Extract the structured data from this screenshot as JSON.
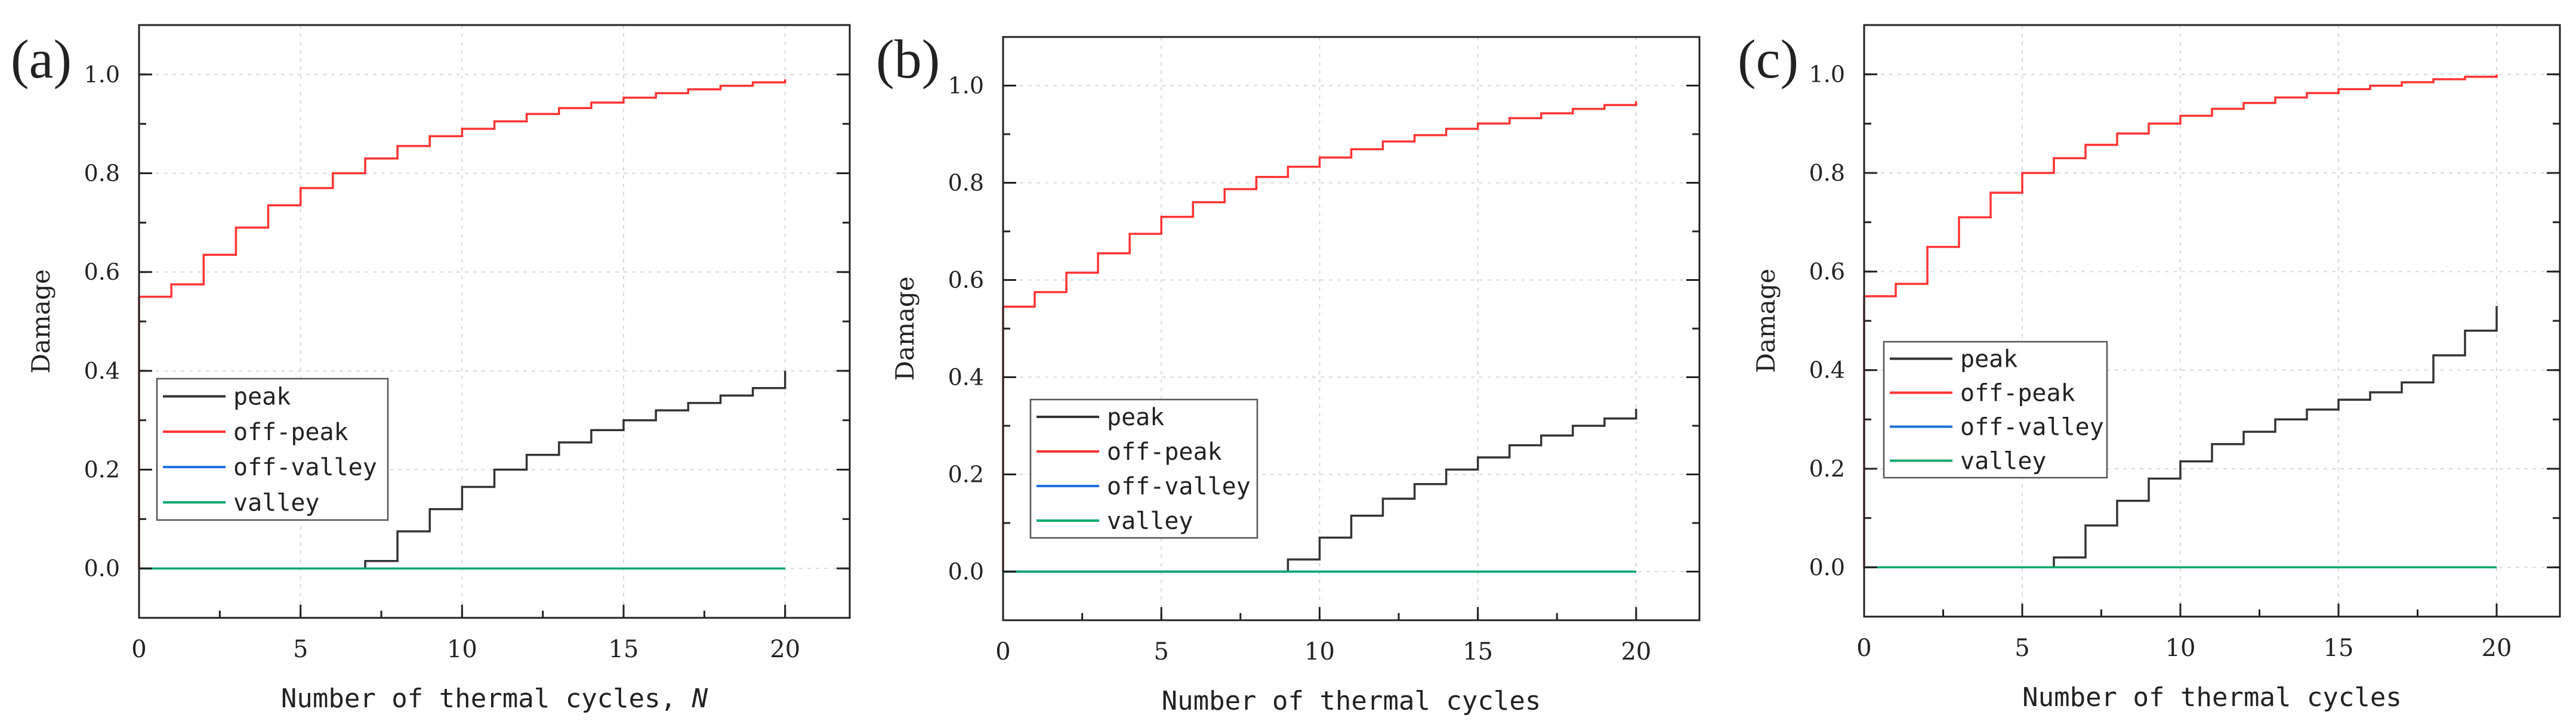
{
  "colors": {
    "peak": "#333333",
    "off-peak": "#ff3333",
    "off-valley": "#1f6fe0",
    "valley": "#00a86b",
    "grid": "#d9d9d9",
    "axis": "#222222"
  },
  "chart_data": [
    {
      "panel_label": "(a)",
      "type": "line",
      "step": true,
      "xlabel": "Number of thermal cycles, ",
      "xlabel_italic": "N",
      "ylabel": "Damage",
      "xlim": [
        0,
        22
      ],
      "ylim": [
        -0.1,
        1.1
      ],
      "xticks": [
        "0",
        "5",
        "10",
        "15",
        "20"
      ],
      "yticks": [
        "0.0",
        "0.2",
        "0.4",
        "0.6",
        "0.8",
        "1.0"
      ],
      "grid": true,
      "legend_position": "lower-left",
      "series": [
        {
          "name": "peak",
          "color_key": "peak",
          "x": [
            0,
            1,
            2,
            3,
            4,
            5,
            6,
            7,
            8,
            9,
            10,
            11,
            12,
            13,
            14,
            15,
            16,
            17,
            18,
            19,
            20
          ],
          "values": [
            0,
            0,
            0,
            0,
            0,
            0,
            0,
            0.015,
            0.075,
            0.12,
            0.165,
            0.2,
            0.23,
            0.255,
            0.28,
            0.3,
            0.32,
            0.335,
            0.35,
            0.365,
            0.4
          ]
        },
        {
          "name": "off-peak",
          "color_key": "off-peak",
          "x": [
            0,
            1,
            2,
            3,
            4,
            5,
            6,
            7,
            8,
            9,
            10,
            11,
            12,
            13,
            14,
            15,
            16,
            17,
            18,
            19,
            20
          ],
          "values": [
            0.55,
            0.575,
            0.635,
            0.69,
            0.735,
            0.77,
            0.8,
            0.83,
            0.855,
            0.875,
            0.89,
            0.905,
            0.92,
            0.932,
            0.943,
            0.953,
            0.962,
            0.97,
            0.977,
            0.984,
            0.99
          ]
        },
        {
          "name": "off-valley",
          "color_key": "off-valley",
          "x": [
            0,
            20
          ],
          "values": [
            0,
            0
          ]
        },
        {
          "name": "valley",
          "color_key": "valley",
          "x": [
            0,
            20
          ],
          "values": [
            0,
            0
          ]
        }
      ]
    },
    {
      "panel_label": "(b)",
      "type": "line",
      "step": true,
      "xlabel": "Number of thermal cycles",
      "xlabel_italic": "",
      "ylabel": "Damage",
      "xlim": [
        0,
        22
      ],
      "ylim": [
        -0.1,
        1.1
      ],
      "xticks": [
        "0",
        "5",
        "10",
        "15",
        "20"
      ],
      "yticks": [
        "0.0",
        "0.2",
        "0.4",
        "0.6",
        "0.8",
        "1.0"
      ],
      "grid": true,
      "legend_position": "lower-left",
      "series": [
        {
          "name": "peak",
          "color_key": "peak",
          "x": [
            0,
            1,
            2,
            3,
            4,
            5,
            6,
            7,
            8,
            9,
            10,
            11,
            12,
            13,
            14,
            15,
            16,
            17,
            18,
            19,
            20
          ],
          "values": [
            0,
            0,
            0,
            0,
            0,
            0,
            0,
            0,
            0,
            0.025,
            0.07,
            0.115,
            0.15,
            0.18,
            0.21,
            0.235,
            0.26,
            0.28,
            0.3,
            0.315,
            0.335
          ]
        },
        {
          "name": "off-peak",
          "color_key": "off-peak",
          "x": [
            0,
            1,
            2,
            3,
            4,
            5,
            6,
            7,
            8,
            9,
            10,
            11,
            12,
            13,
            14,
            15,
            16,
            17,
            18,
            19,
            20
          ],
          "values": [
            0.545,
            0.575,
            0.615,
            0.655,
            0.695,
            0.73,
            0.76,
            0.787,
            0.812,
            0.833,
            0.852,
            0.869,
            0.885,
            0.898,
            0.911,
            0.922,
            0.933,
            0.943,
            0.952,
            0.96,
            0.968
          ]
        },
        {
          "name": "off-valley",
          "color_key": "off-valley",
          "x": [
            0,
            20
          ],
          "values": [
            0,
            0
          ]
        },
        {
          "name": "valley",
          "color_key": "valley",
          "x": [
            0,
            20
          ],
          "values": [
            0,
            0
          ]
        }
      ]
    },
    {
      "panel_label": "(c)",
      "type": "line",
      "step": true,
      "xlabel": "Number of thermal cycles",
      "xlabel_italic": "",
      "ylabel": "Damage",
      "xlim": [
        0,
        22
      ],
      "ylim": [
        -0.1,
        1.1
      ],
      "xticks": [
        "0",
        "5",
        "10",
        "15",
        "20"
      ],
      "yticks": [
        "0.0",
        "0.2",
        "0.4",
        "0.6",
        "0.8",
        "1.0"
      ],
      "grid": true,
      "legend_position": "middle-left",
      "series": [
        {
          "name": "peak",
          "color_key": "peak",
          "x": [
            0,
            1,
            2,
            3,
            4,
            5,
            6,
            7,
            8,
            9,
            10,
            11,
            12,
            13,
            14,
            15,
            16,
            17,
            18,
            19,
            20
          ],
          "values": [
            0,
            0,
            0,
            0,
            0,
            0,
            0.02,
            0.085,
            0.135,
            0.18,
            0.215,
            0.25,
            0.275,
            0.3,
            0.32,
            0.34,
            0.355,
            0.375,
            0.43,
            0.48,
            0.53
          ]
        },
        {
          "name": "off-peak",
          "color_key": "off-peak",
          "x": [
            0,
            1,
            2,
            3,
            4,
            5,
            6,
            7,
            8,
            9,
            10,
            11,
            12,
            13,
            14,
            15,
            16,
            17,
            18,
            19,
            20
          ],
          "values": [
            0.55,
            0.575,
            0.65,
            0.71,
            0.76,
            0.8,
            0.83,
            0.857,
            0.88,
            0.9,
            0.916,
            0.93,
            0.942,
            0.953,
            0.962,
            0.97,
            0.977,
            0.984,
            0.99,
            0.995,
            1.0
          ]
        },
        {
          "name": "off-valley",
          "color_key": "off-valley",
          "x": [
            0,
            20
          ],
          "values": [
            0,
            0
          ]
        },
        {
          "name": "valley",
          "color_key": "valley",
          "x": [
            0,
            20
          ],
          "values": [
            0,
            0
          ]
        }
      ]
    }
  ]
}
